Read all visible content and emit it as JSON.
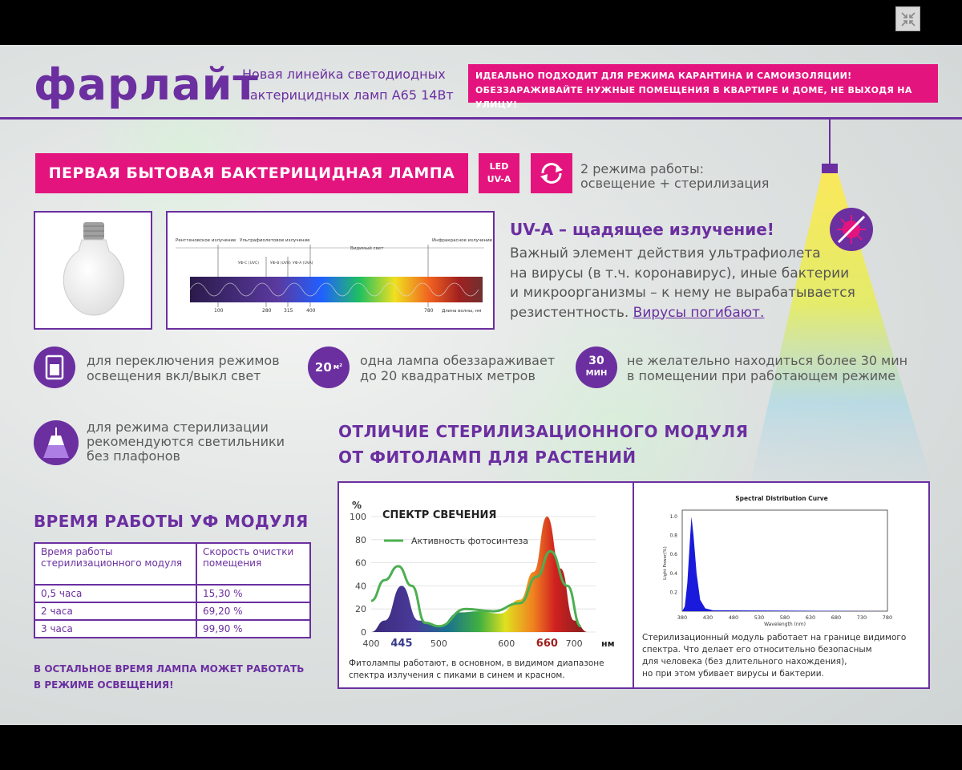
{
  "brand": {
    "logo": "фарлайт"
  },
  "header": {
    "subtitle_line1": "Новая линейка светодиодных",
    "subtitle_line2": "бактерицидных ламп А65 14Вт",
    "promo_line1": "ИДЕАЛЬНО ПОДХОДИТ ДЛЯ РЕЖИМА КАРАНТИНА И САМОИЗОЛЯЦИИ!",
    "promo_line2": "ОБЕЗЗАРАЖИВАЙТЕ НУЖНЫЕ ПОМЕЩЕНИЯ В КВАРТИРЕ И ДОМЕ, НЕ ВЫХОДЯ НА УЛИЦУ!"
  },
  "headline": "ПЕРВАЯ БЫТОВАЯ БАКТЕРИЦИДНАЯ ЛАМПА",
  "led_badge": {
    "line1": "LED",
    "line2": "UV-A"
  },
  "modes": {
    "line1": "2 режима работы:",
    "line2": "освещение + стерилизация"
  },
  "spectrum_figure": {
    "labels": {
      "xray": "Рентгеновское излучение",
      "uv": "Ультрафиолетовое излучение",
      "visible": "Видимый свет",
      "ir": "Инфракрасное излучение",
      "uvc": "УФ-С (UVC)",
      "uvb": "УФ-В (UVB)",
      "uva": "УФ-А (UVA)",
      "axis": "Длина волны, нм"
    },
    "ticks": [
      "100",
      "280",
      "315",
      "400",
      "780"
    ]
  },
  "uva": {
    "title": "UV-A – щадящее излучение!",
    "line1": "Важный элемент действия ультрафиолета",
    "line2": "на вирусы (в т.ч. коронавирус), иные бактерии",
    "line3": "и микроорганизмы – к нему не вырабатывается",
    "line4_prefix": "резистентность. ",
    "line4_link": "Вирусы погибают."
  },
  "features": {
    "switch": {
      "line1": "для переключения режимов",
      "line2": "освещения вкл/выкл свет"
    },
    "area": {
      "icon_value": "20",
      "icon_unit": "м²",
      "line1": "одна лампа обеззараживает",
      "line2": "до 20 квадратных метров"
    },
    "time": {
      "icon_value": "30",
      "icon_unit": "МИН",
      "line1": "не желательно находиться более 30 мин",
      "line2": "в помещении при работающем режиме"
    },
    "fixture": {
      "line1": "для режима стерилизации",
      "line2": "рекомендуются светильники",
      "line3": "без плафонов"
    }
  },
  "uv_time": {
    "title": "ВРЕМЯ РАБОТЫ УФ МОДУЛЯ",
    "col1": "Время работы стерилизационного модуля",
    "col2": "Скорость очистки помещения",
    "rows": [
      {
        "time": "0,5 часа",
        "rate": "15,30 %"
      },
      {
        "time": "2 часа",
        "rate": "69,20 %"
      },
      {
        "time": "3 часа",
        "rate": "99,90 %"
      }
    ],
    "note_line1": "В ОСТАЛЬНОЕ ВРЕМЯ ЛАМПА МОЖЕТ РАБОТАТЬ",
    "note_line2": "В РЕЖИМЕ ОСВЕЩЕНИЯ!"
  },
  "difference": {
    "line1": "ОТЛИЧИЕ СТЕРИЛИЗАЦИОННОГО МОДУЛЯ",
    "line2": "ОТ ФИТОЛАМП ДЛЯ РАСТЕНИЙ"
  },
  "chart_data": [
    {
      "type": "area",
      "title": "СПЕКТР СВЕЧЕНИЯ",
      "ylabel": "%",
      "xlabel": "нм",
      "xlim": [
        400,
        720
      ],
      "ylim": [
        0,
        100
      ],
      "xticks": [
        "400",
        "445",
        "500",
        "600",
        "660",
        "700"
      ],
      "yticks": [
        "0",
        "20",
        "40",
        "60",
        "80",
        "100"
      ],
      "legend": "Активность фотосинтеза",
      "series": [
        {
          "values": [
            [
              400,
              0
            ],
            [
              420,
              10
            ],
            [
              445,
              40
            ],
            [
              470,
              10
            ],
            [
              500,
              5
            ],
            [
              530,
              17
            ],
            [
              560,
              18
            ],
            [
              590,
              16
            ],
            [
              620,
              28
            ],
            [
              640,
              52
            ],
            [
              660,
              100
            ],
            [
              680,
              55
            ],
            [
              700,
              10
            ],
            [
              720,
              0
            ]
          ]
        },
        {
          "name": "Активность фотосинтеза",
          "values": [
            [
              400,
              27
            ],
            [
              420,
              45
            ],
            [
              440,
              57
            ],
            [
              460,
              40
            ],
            [
              480,
              8
            ],
            [
              500,
              5
            ],
            [
              540,
              20
            ],
            [
              580,
              18
            ],
            [
              620,
              25
            ],
            [
              645,
              48
            ],
            [
              665,
              70
            ],
            [
              690,
              40
            ],
            [
              710,
              5
            ]
          ]
        }
      ],
      "caption_line1": "Фитолампы работают, в основном, в видимом диапазоне",
      "caption_line2": "спектра излучения с пиками в синем и красном."
    },
    {
      "type": "area",
      "title": "Spectral Distribution Curve",
      "xlabel": "Wavelength (nm)",
      "ylabel": "Light Power(%)",
      "xlim": [
        380,
        780
      ],
      "ylim": [
        0,
        1.0
      ],
      "xticks": [
        "380",
        "430",
        "480",
        "530",
        "580",
        "630",
        "680",
        "730",
        "780"
      ],
      "yticks": [
        "0.2",
        "0.4",
        "0.6",
        "0.8",
        "1.0"
      ],
      "series": [
        {
          "values": [
            [
              380,
              0
            ],
            [
              385,
              0.05
            ],
            [
              390,
              0.3
            ],
            [
              395,
              0.75
            ],
            [
              398,
              1.0
            ],
            [
              402,
              0.8
            ],
            [
              408,
              0.4
            ],
            [
              415,
              0.12
            ],
            [
              425,
              0.03
            ],
            [
              440,
              0.01
            ],
            [
              780,
              0
            ]
          ]
        }
      ],
      "caption_line1": "Стерилизационный модуль работает на границе видимого",
      "caption_line2": "спектра. Что делает его относительно безопасным",
      "caption_line3": "для человека (без длительного нахождения),",
      "caption_line4": "но при этом убивает вирусы и бактерии."
    }
  ]
}
